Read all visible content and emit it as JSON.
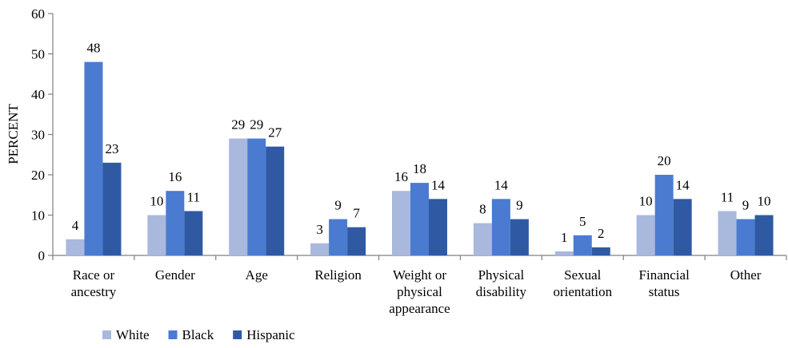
{
  "chart_data": {
    "type": "bar",
    "title": "",
    "xlabel": "",
    "ylabel": "PERCENT",
    "ylim": [
      0,
      60
    ],
    "yticks": [
      "0",
      "10",
      "20",
      "30",
      "40",
      "50",
      "60"
    ],
    "grid": false,
    "legend_position": "bottom-left",
    "categories": [
      [
        "Race or",
        "ancestry"
      ],
      [
        "Gender"
      ],
      [
        "Age"
      ],
      [
        "Religion"
      ],
      [
        "Weight or",
        "physical",
        "appearance"
      ],
      [
        "Physical",
        "disability"
      ],
      [
        "Sexual",
        "orientation"
      ],
      [
        "Financial",
        "status"
      ],
      [
        "Other"
      ]
    ],
    "series": [
      {
        "name": "White",
        "color": "#a9b8dd",
        "values": [
          4,
          10,
          29,
          3,
          16,
          8,
          1,
          10,
          11
        ]
      },
      {
        "name": "Black",
        "color": "#4a7bd1",
        "values": [
          48,
          16,
          29,
          9,
          18,
          14,
          5,
          20,
          9
        ]
      },
      {
        "name": "Hispanic",
        "color": "#2f5aa3",
        "values": [
          23,
          11,
          27,
          7,
          14,
          9,
          2,
          14,
          10
        ]
      }
    ]
  }
}
